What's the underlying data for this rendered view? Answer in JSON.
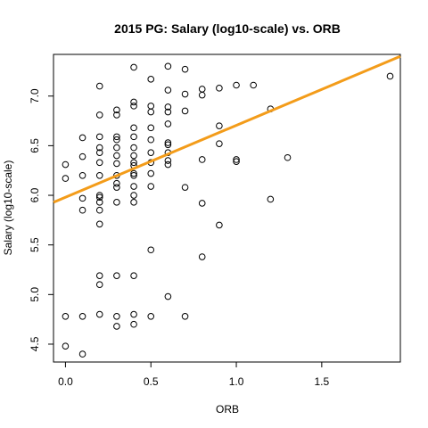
{
  "chart_data": {
    "type": "scatter",
    "title": "2015 PG: Salary (log10-scale) vs. ORB",
    "xlabel": "ORB",
    "ylabel": "Salary (log10-scale)",
    "xlim": [
      -0.07,
      1.96
    ],
    "ylim": [
      4.32,
      7.42
    ],
    "xticks": [
      0.0,
      0.5,
      1.0,
      1.5
    ],
    "xtick_labels": [
      "0.0",
      "0.5",
      "1.0",
      "1.5"
    ],
    "yticks": [
      4.5,
      5.0,
      5.5,
      6.0,
      6.5,
      7.0
    ],
    "ytick_labels": [
      "4.5",
      "5.0",
      "5.5",
      "6.0",
      "6.5",
      "7.0"
    ],
    "grid": false,
    "legend": "none",
    "fit_line": {
      "intercept": 5.98,
      "slope": 0.725,
      "color": "#f39c1a"
    },
    "points": [
      {
        "x": 0.0,
        "y": 6.31
      },
      {
        "x": 0.0,
        "y": 6.17
      },
      {
        "x": 0.0,
        "y": 4.78
      },
      {
        "x": 0.0,
        "y": 4.48
      },
      {
        "x": 0.1,
        "y": 6.58
      },
      {
        "x": 0.1,
        "y": 6.39
      },
      {
        "x": 0.1,
        "y": 6.2
      },
      {
        "x": 0.1,
        "y": 5.97
      },
      {
        "x": 0.1,
        "y": 5.85
      },
      {
        "x": 0.1,
        "y": 4.78
      },
      {
        "x": 0.1,
        "y": 4.4
      },
      {
        "x": 0.2,
        "y": 7.1
      },
      {
        "x": 0.2,
        "y": 6.81
      },
      {
        "x": 0.2,
        "y": 6.59
      },
      {
        "x": 0.2,
        "y": 6.48
      },
      {
        "x": 0.2,
        "y": 6.43
      },
      {
        "x": 0.2,
        "y": 6.33
      },
      {
        "x": 0.2,
        "y": 6.2
      },
      {
        "x": 0.2,
        "y": 6.0
      },
      {
        "x": 0.2,
        "y": 5.98
      },
      {
        "x": 0.2,
        "y": 5.93
      },
      {
        "x": 0.2,
        "y": 5.85
      },
      {
        "x": 0.2,
        "y": 5.71
      },
      {
        "x": 0.2,
        "y": 5.19
      },
      {
        "x": 0.2,
        "y": 5.1
      },
      {
        "x": 0.2,
        "y": 4.8
      },
      {
        "x": 0.3,
        "y": 6.86
      },
      {
        "x": 0.3,
        "y": 6.81
      },
      {
        "x": 0.3,
        "y": 6.59
      },
      {
        "x": 0.3,
        "y": 6.56
      },
      {
        "x": 0.3,
        "y": 6.48
      },
      {
        "x": 0.3,
        "y": 6.4
      },
      {
        "x": 0.3,
        "y": 6.32
      },
      {
        "x": 0.3,
        "y": 6.2
      },
      {
        "x": 0.3,
        "y": 6.12
      },
      {
        "x": 0.3,
        "y": 6.08
      },
      {
        "x": 0.3,
        "y": 5.93
      },
      {
        "x": 0.3,
        "y": 5.19
      },
      {
        "x": 0.3,
        "y": 4.78
      },
      {
        "x": 0.3,
        "y": 4.68
      },
      {
        "x": 0.4,
        "y": 7.29
      },
      {
        "x": 0.4,
        "y": 6.94
      },
      {
        "x": 0.4,
        "y": 6.9
      },
      {
        "x": 0.4,
        "y": 6.68
      },
      {
        "x": 0.4,
        "y": 6.59
      },
      {
        "x": 0.4,
        "y": 6.48
      },
      {
        "x": 0.4,
        "y": 6.4
      },
      {
        "x": 0.4,
        "y": 6.33
      },
      {
        "x": 0.4,
        "y": 6.3
      },
      {
        "x": 0.4,
        "y": 6.22
      },
      {
        "x": 0.4,
        "y": 6.2
      },
      {
        "x": 0.4,
        "y": 6.09
      },
      {
        "x": 0.4,
        "y": 6.0
      },
      {
        "x": 0.4,
        "y": 5.93
      },
      {
        "x": 0.4,
        "y": 5.19
      },
      {
        "x": 0.4,
        "y": 4.8
      },
      {
        "x": 0.4,
        "y": 4.7
      },
      {
        "x": 0.5,
        "y": 7.17
      },
      {
        "x": 0.5,
        "y": 6.9
      },
      {
        "x": 0.5,
        "y": 6.84
      },
      {
        "x": 0.5,
        "y": 6.68
      },
      {
        "x": 0.5,
        "y": 6.56
      },
      {
        "x": 0.5,
        "y": 6.43
      },
      {
        "x": 0.5,
        "y": 6.33
      },
      {
        "x": 0.5,
        "y": 6.22
      },
      {
        "x": 0.5,
        "y": 6.09
      },
      {
        "x": 0.5,
        "y": 5.45
      },
      {
        "x": 0.5,
        "y": 4.78
      },
      {
        "x": 0.6,
        "y": 7.3
      },
      {
        "x": 0.6,
        "y": 7.06
      },
      {
        "x": 0.6,
        "y": 6.89
      },
      {
        "x": 0.6,
        "y": 6.84
      },
      {
        "x": 0.6,
        "y": 6.72
      },
      {
        "x": 0.6,
        "y": 6.53
      },
      {
        "x": 0.6,
        "y": 6.51
      },
      {
        "x": 0.6,
        "y": 6.43
      },
      {
        "x": 0.6,
        "y": 6.35
      },
      {
        "x": 0.6,
        "y": 6.31
      },
      {
        "x": 0.6,
        "y": 4.98
      },
      {
        "x": 0.7,
        "y": 7.27
      },
      {
        "x": 0.7,
        "y": 7.02
      },
      {
        "x": 0.7,
        "y": 6.85
      },
      {
        "x": 0.7,
        "y": 6.08
      },
      {
        "x": 0.7,
        "y": 4.78
      },
      {
        "x": 0.8,
        "y": 7.07
      },
      {
        "x": 0.8,
        "y": 7.01
      },
      {
        "x": 0.8,
        "y": 6.36
      },
      {
        "x": 0.8,
        "y": 5.92
      },
      {
        "x": 0.8,
        "y": 5.38
      },
      {
        "x": 0.9,
        "y": 7.08
      },
      {
        "x": 0.9,
        "y": 6.7
      },
      {
        "x": 0.9,
        "y": 6.52
      },
      {
        "x": 0.9,
        "y": 5.7
      },
      {
        "x": 1.0,
        "y": 7.11
      },
      {
        "x": 1.0,
        "y": 6.36
      },
      {
        "x": 1.0,
        "y": 6.34
      },
      {
        "x": 1.1,
        "y": 7.11
      },
      {
        "x": 1.2,
        "y": 6.87
      },
      {
        "x": 1.2,
        "y": 5.96
      },
      {
        "x": 1.3,
        "y": 6.38
      },
      {
        "x": 1.9,
        "y": 7.2
      }
    ]
  }
}
